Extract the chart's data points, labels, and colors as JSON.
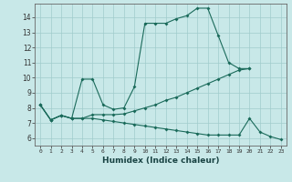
{
  "title": "",
  "xlabel": "Humidex (Indice chaleur)",
  "bg_color": "#c8e8e8",
  "grid_color": "#a0cccc",
  "line_color": "#1a6a5a",
  "xlim": [
    -0.5,
    23.5
  ],
  "ylim": [
    5.5,
    14.9
  ],
  "xticks": [
    0,
    1,
    2,
    3,
    4,
    5,
    6,
    7,
    8,
    9,
    10,
    11,
    12,
    13,
    14,
    15,
    16,
    17,
    18,
    19,
    20,
    21,
    22,
    23
  ],
  "yticks": [
    6,
    7,
    8,
    9,
    10,
    11,
    12,
    13,
    14
  ],
  "line1_x": [
    0,
    1,
    2,
    3,
    4,
    5,
    6,
    7,
    8,
    9,
    10,
    11,
    12,
    13,
    14,
    15,
    16,
    17,
    18,
    19,
    20
  ],
  "line1_y": [
    8.2,
    7.2,
    7.5,
    7.3,
    9.9,
    9.9,
    8.2,
    7.9,
    8.0,
    9.4,
    13.6,
    13.6,
    13.6,
    13.9,
    14.1,
    14.6,
    14.6,
    12.8,
    11.0,
    10.6,
    10.6
  ],
  "line2_x": [
    0,
    1,
    2,
    3,
    4,
    5,
    6,
    7,
    8,
    9,
    10,
    11,
    12,
    13,
    14,
    15,
    16,
    17,
    18,
    19,
    20
  ],
  "line2_y": [
    8.2,
    7.2,
    7.5,
    7.3,
    7.3,
    7.55,
    7.55,
    7.55,
    7.6,
    7.8,
    8.0,
    8.2,
    8.5,
    8.7,
    9.0,
    9.3,
    9.6,
    9.9,
    10.2,
    10.5,
    10.6
  ],
  "line3_x": [
    0,
    1,
    2,
    3,
    4,
    5,
    6,
    7,
    8,
    9,
    10,
    11,
    12,
    13,
    14,
    15,
    16,
    17,
    18,
    19,
    20,
    21,
    22,
    23
  ],
  "line3_y": [
    8.2,
    7.2,
    7.5,
    7.3,
    7.3,
    7.3,
    7.2,
    7.1,
    7.0,
    6.9,
    6.8,
    6.7,
    6.6,
    6.5,
    6.4,
    6.3,
    6.2,
    6.2,
    6.2,
    6.2,
    7.3,
    6.4,
    6.1,
    5.9
  ]
}
